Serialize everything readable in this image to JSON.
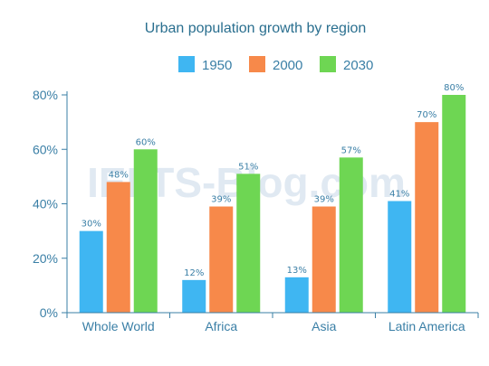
{
  "watermark": "IELTS-Blog.com",
  "chart_data": {
    "type": "bar",
    "title": "Urban population growth by region",
    "categories": [
      "Whole World",
      "Africa",
      "Asia",
      "Latin America"
    ],
    "series": [
      {
        "name": "1950",
        "color": "#3fb6f2",
        "values": [
          30,
          12,
          13,
          41
        ],
        "labels": [
          "30%",
          "12%",
          "13%",
          "41%"
        ]
      },
      {
        "name": "2000",
        "color": "#f7894a",
        "values": [
          48,
          39,
          39,
          70
        ],
        "labels": [
          "48%",
          "39%",
          "39%",
          "70%"
        ]
      },
      {
        "name": "2030",
        "color": "#6ed653",
        "values": [
          60,
          51,
          57,
          80
        ],
        "labels": [
          "60%",
          "51%",
          "57%",
          "80%"
        ]
      }
    ],
    "ylim": [
      0,
      80
    ],
    "yticks": [
      0,
      20,
      40,
      60,
      80
    ],
    "ytick_labels": [
      "0%",
      "20%",
      "40%",
      "60%",
      "80%"
    ],
    "legend_position": "top",
    "grid": false,
    "axis_color": "#3a7fa6"
  }
}
